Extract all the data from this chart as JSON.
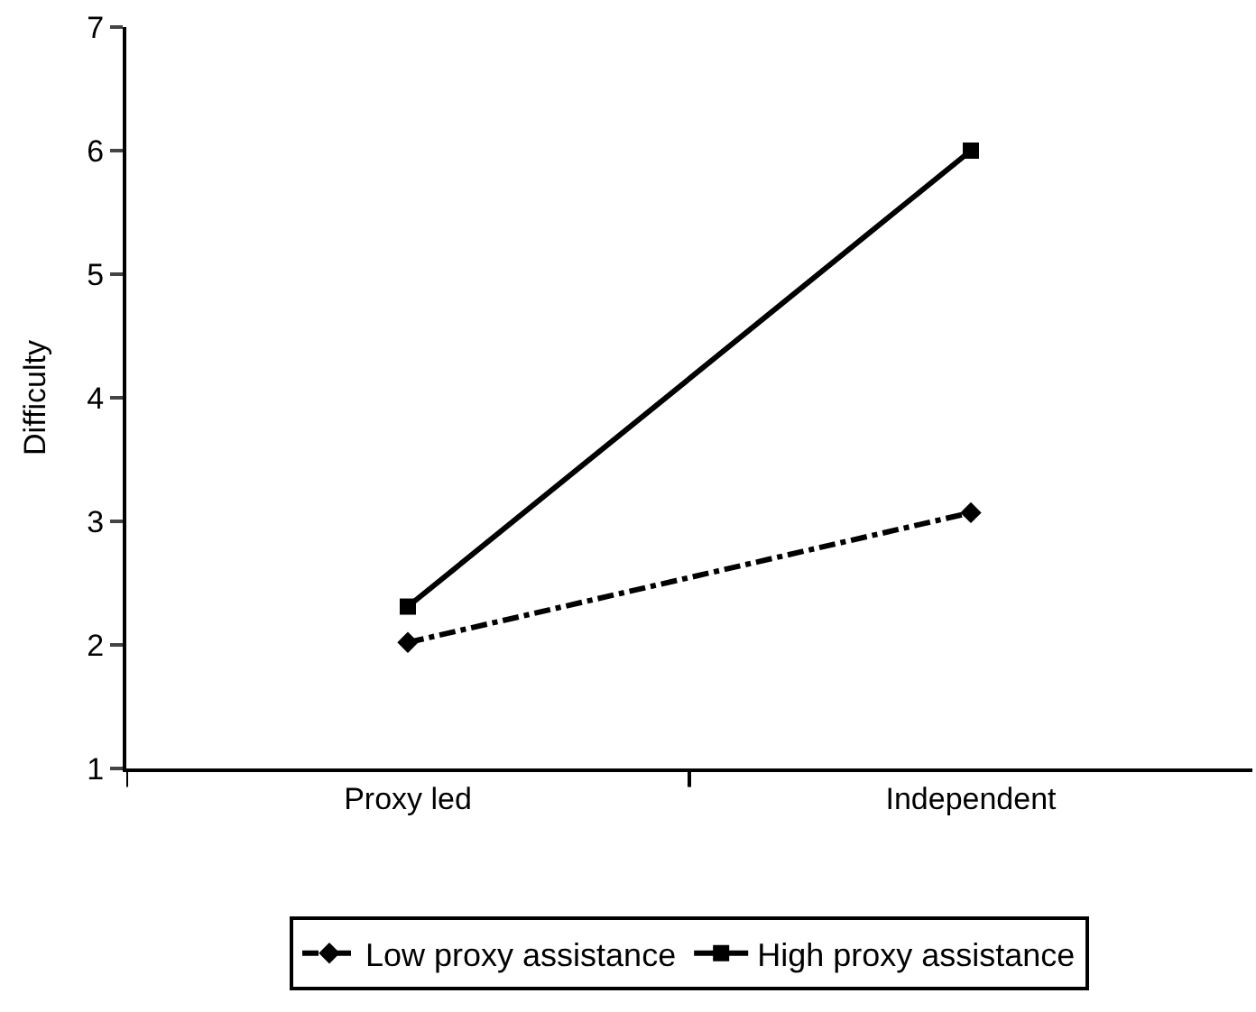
{
  "chart_data": {
    "type": "line",
    "ylabel": "Difficulty",
    "categories": [
      "Proxy led",
      "Independent"
    ],
    "series": [
      {
        "name": "Low proxy assistance",
        "color": "#000000",
        "values": [
          2.02,
          3.07
        ],
        "marker": "diamond",
        "line_style": "dashed"
      },
      {
        "name": "High proxy assistance",
        "color": "#000000",
        "values": [
          2.31,
          6.0
        ],
        "marker": "square",
        "line_style": "solid"
      }
    ],
    "ylim": [
      1,
      7
    ],
    "yticks": [
      1,
      2,
      3,
      4,
      5,
      6,
      7
    ],
    "grid": false,
    "legend": "bottom"
  }
}
